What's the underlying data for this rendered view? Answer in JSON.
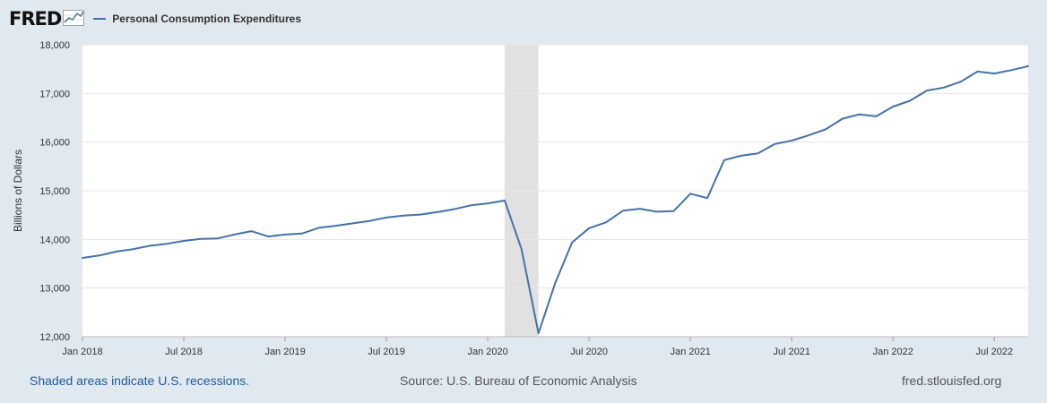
{
  "header": {
    "logo_text": "FRED",
    "logo_icon": "line-graph-icon",
    "legend_label": "Personal Consumption Expenditures"
  },
  "colors": {
    "background": "#e1e9f0",
    "plot_background": "#ffffff",
    "series_line": "#4572a7",
    "gridline": "#e6e6e6",
    "recession_shading": "#e1e1e1",
    "recession_note": "#1f5a96"
  },
  "footer": {
    "recession_note": "Shaded areas indicate U.S. recessions.",
    "source": "Source: U.S. Bureau of Economic Analysis",
    "site": "fred.stlouisfed.org"
  },
  "chart_data": {
    "type": "line",
    "title": "",
    "ylabel": "Billions of Dollars",
    "xlabel": "",
    "ylim": [
      12000,
      18000
    ],
    "yticks": [
      12000,
      13000,
      14000,
      15000,
      16000,
      17000,
      18000
    ],
    "ytick_labels": [
      "12,000",
      "13,000",
      "14,000",
      "15,000",
      "16,000",
      "17,000",
      "18,000"
    ],
    "xlim": [
      "2018-01",
      "2022-09"
    ],
    "xticks": [
      "2018-01",
      "2018-07",
      "2019-01",
      "2019-07",
      "2020-01",
      "2020-07",
      "2021-01",
      "2021-07",
      "2022-01",
      "2022-07"
    ],
    "xtick_labels": [
      "Jan 2018",
      "Jul 2018",
      "Jan 2019",
      "Jul 2019",
      "Jan 2020",
      "Jul 2020",
      "Jan 2021",
      "Jul 2021",
      "Jan 2022",
      "Jul 2022"
    ],
    "grid": true,
    "legend_position": "top",
    "recessions": [
      {
        "start": "2020-02",
        "end": "2020-04"
      }
    ],
    "series": [
      {
        "name": "Personal Consumption Expenditures",
        "x": [
          "2018-01",
          "2018-02",
          "2018-03",
          "2018-04",
          "2018-05",
          "2018-06",
          "2018-07",
          "2018-08",
          "2018-09",
          "2018-10",
          "2018-11",
          "2018-12",
          "2019-01",
          "2019-02",
          "2019-03",
          "2019-04",
          "2019-05",
          "2019-06",
          "2019-07",
          "2019-08",
          "2019-09",
          "2019-10",
          "2019-11",
          "2019-12",
          "2020-01",
          "2020-02",
          "2020-03",
          "2020-04",
          "2020-05",
          "2020-06",
          "2020-07",
          "2020-08",
          "2020-09",
          "2020-10",
          "2020-11",
          "2020-12",
          "2021-01",
          "2021-02",
          "2021-03",
          "2021-04",
          "2021-05",
          "2021-06",
          "2021-07",
          "2021-08",
          "2021-09",
          "2021-10",
          "2021-11",
          "2021-12",
          "2022-01",
          "2022-02",
          "2022-03",
          "2022-04",
          "2022-05",
          "2022-06",
          "2022-07",
          "2022-08",
          "2022-09"
        ],
        "y": [
          13620,
          13670,
          13750,
          13800,
          13870,
          13910,
          13970,
          14010,
          14020,
          14100,
          14170,
          14060,
          14100,
          14120,
          14240,
          14280,
          14330,
          14380,
          14450,
          14490,
          14510,
          14560,
          14620,
          14700,
          14740,
          14800,
          13800,
          12070,
          13110,
          13940,
          14230,
          14350,
          14590,
          14630,
          14570,
          14580,
          14940,
          14850,
          15630,
          15720,
          15770,
          15960,
          16030,
          16140,
          16260,
          16480,
          16570,
          16530,
          16730,
          16850,
          17060,
          17120,
          17240,
          17450,
          17410,
          17480,
          17560
        ]
      }
    ]
  }
}
